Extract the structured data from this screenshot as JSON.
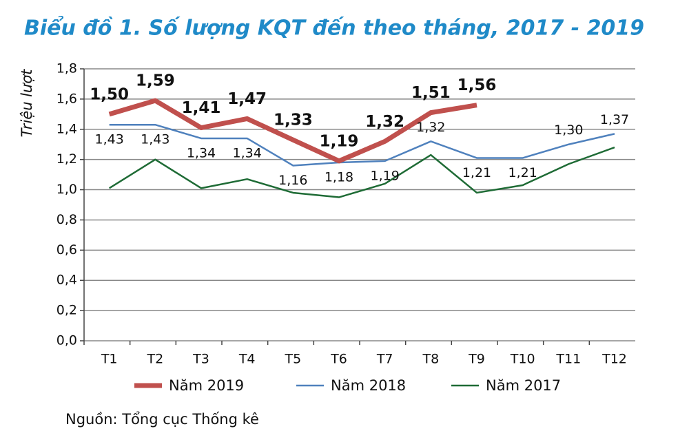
{
  "chart_data": {
    "type": "line",
    "title": "Biểu đồ 1. Số lượng KQT đến theo tháng, 2017 - 2019",
    "ylabel": "Triệu lượt",
    "source": "Nguồn: Tổng cục Thống kê",
    "categories": [
      "T1",
      "T2",
      "T3",
      "T4",
      "T5",
      "T6",
      "T7",
      "T8",
      "T9",
      "T10",
      "T11",
      "T12"
    ],
    "series": [
      {
        "name": "Năm 2019",
        "color": "#c0504d",
        "values": [
          1.5,
          1.59,
          1.41,
          1.47,
          1.33,
          1.19,
          1.32,
          1.51,
          1.56,
          null,
          null,
          null
        ],
        "value_labels": [
          "1,50",
          "1,59",
          "1,41",
          "1,47",
          "1,33",
          "1,19",
          "1,32",
          "1,51",
          "1,56",
          null,
          null,
          null
        ]
      },
      {
        "name": "Năm 2018",
        "color": "#4f81bd",
        "values": [
          1.43,
          1.43,
          1.34,
          1.34,
          1.16,
          1.18,
          1.19,
          1.32,
          1.21,
          1.21,
          1.3,
          1.37
        ],
        "value_labels": [
          "1,43",
          "1,43",
          "1,34",
          "1,34",
          "1,16",
          "1,18",
          "1,19",
          "1,32",
          "1,21",
          "1,21",
          "1,30",
          "1,37"
        ]
      },
      {
        "name": "Năm 2017",
        "color": "#1e6b35",
        "values": [
          1.01,
          1.2,
          1.01,
          1.07,
          0.98,
          0.95,
          1.04,
          1.23,
          0.98,
          1.03,
          1.17,
          1.28
        ]
      }
    ],
    "ylim": [
      0,
      1.8
    ],
    "yticks": [
      {
        "value": 0,
        "label": "0,0"
      },
      {
        "value": 0.2,
        "label": "0,2"
      },
      {
        "value": 0.4,
        "label": "0,4"
      },
      {
        "value": 0.6,
        "label": "0,6"
      },
      {
        "value": 0.8,
        "label": "0,8"
      },
      {
        "value": 1.0,
        "label": "1,0"
      },
      {
        "value": 1.2,
        "label": "1,2"
      },
      {
        "value": 1.4,
        "label": "1,4"
      },
      {
        "value": 1.6,
        "label": "1,6"
      },
      {
        "value": 1.8,
        "label": "1,8"
      }
    ],
    "grid": true,
    "legend": "bottom"
  }
}
